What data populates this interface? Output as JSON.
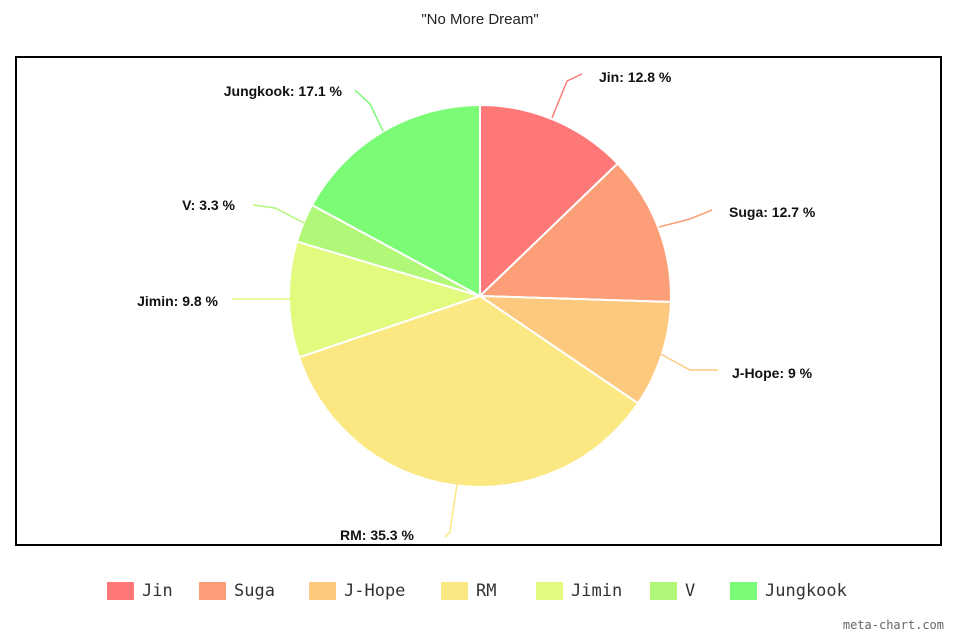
{
  "chart_data": {
    "type": "pie",
    "title": "\"No More Dream\"",
    "slices": [
      {
        "name": "Jin",
        "value": 12.8,
        "label": "Jin: 12.8 %",
        "color": "#ff7878"
      },
      {
        "name": "Suga",
        "value": 12.7,
        "label": "Suga: 12.7 %",
        "color": "#fc9f78"
      },
      {
        "name": "J-Hope",
        "value": 9,
        "label": "J-Hope: 9 %",
        "color": "#fdc97e"
      },
      {
        "name": "RM",
        "value": 35.3,
        "label": "RM: 35.3 %",
        "color": "#fbe882"
      },
      {
        "name": "Jimin",
        "value": 9.8,
        "label": "Jimin: 9.8 %",
        "color": "#e2fa7d"
      },
      {
        "name": "V",
        "value": 3.3,
        "label": "V: 3.3 %",
        "color": "#b1f879"
      },
      {
        "name": "Jungkook",
        "value": 17.1,
        "label": "Jungkook: 17.1 %",
        "color": "#7bfb76"
      }
    ],
    "legend_position": "bottom"
  },
  "watermark": "meta-chart.com"
}
